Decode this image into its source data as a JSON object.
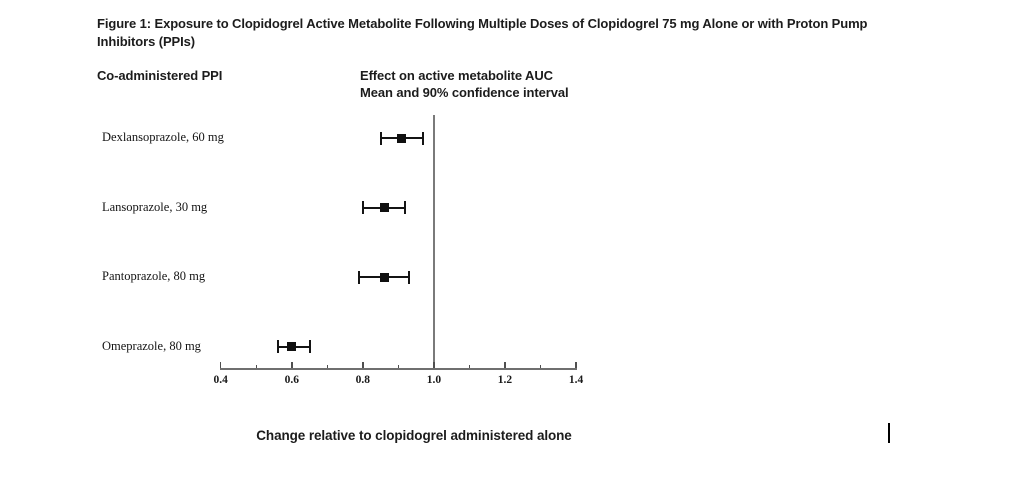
{
  "page": {
    "background_color": "#ffffff",
    "text_color": "#1c1c1c"
  },
  "chart_data": {
    "type": "scatter",
    "subtype": "forest-plot",
    "title": "Figure 1: Exposure to Clopidogrel Active Metabolite Following Multiple Doses of Clopidogrel 75 mg Alone or with Proton Pump Inhibitors (PPIs)",
    "left_column_header": "Co-administered PPI",
    "right_column_header_line1": "Effect on active metabolite AUC",
    "right_column_header_line2": "Mean and 90% confidence interval",
    "xlabel": "Change relative to clopidogrel administered alone",
    "xlim": [
      0.4,
      1.4
    ],
    "x_tick_labels": [
      "0.4",
      "0.6",
      "0.8",
      "1.0",
      "1.2",
      "1.4"
    ],
    "x_ticks": [
      0.4,
      0.6,
      0.8,
      1.0,
      1.2,
      1.4
    ],
    "minor_ticks": [
      0.5,
      0.7,
      0.9,
      1.1,
      1.3
    ],
    "reference_line_x": 1.0,
    "grid": false,
    "legend": false,
    "rows": [
      {
        "label": "Dexlansoprazole, 60 mg",
        "mean": 0.91,
        "ci_low": 0.85,
        "ci_high": 0.97
      },
      {
        "label": "Lansoprazole, 30 mg",
        "mean": 0.86,
        "ci_low": 0.8,
        "ci_high": 0.92
      },
      {
        "label": "Pantoprazole, 80 mg",
        "mean": 0.86,
        "ci_low": 0.79,
        "ci_high": 0.93
      },
      {
        "label": "Omeprazole, 80 mg",
        "mean": 0.6,
        "ci_low": 0.56,
        "ci_high": 0.65
      }
    ],
    "colors": {
      "marker": "#101010",
      "axis": "#6f6f6f",
      "text": "#1c1c1c"
    }
  }
}
